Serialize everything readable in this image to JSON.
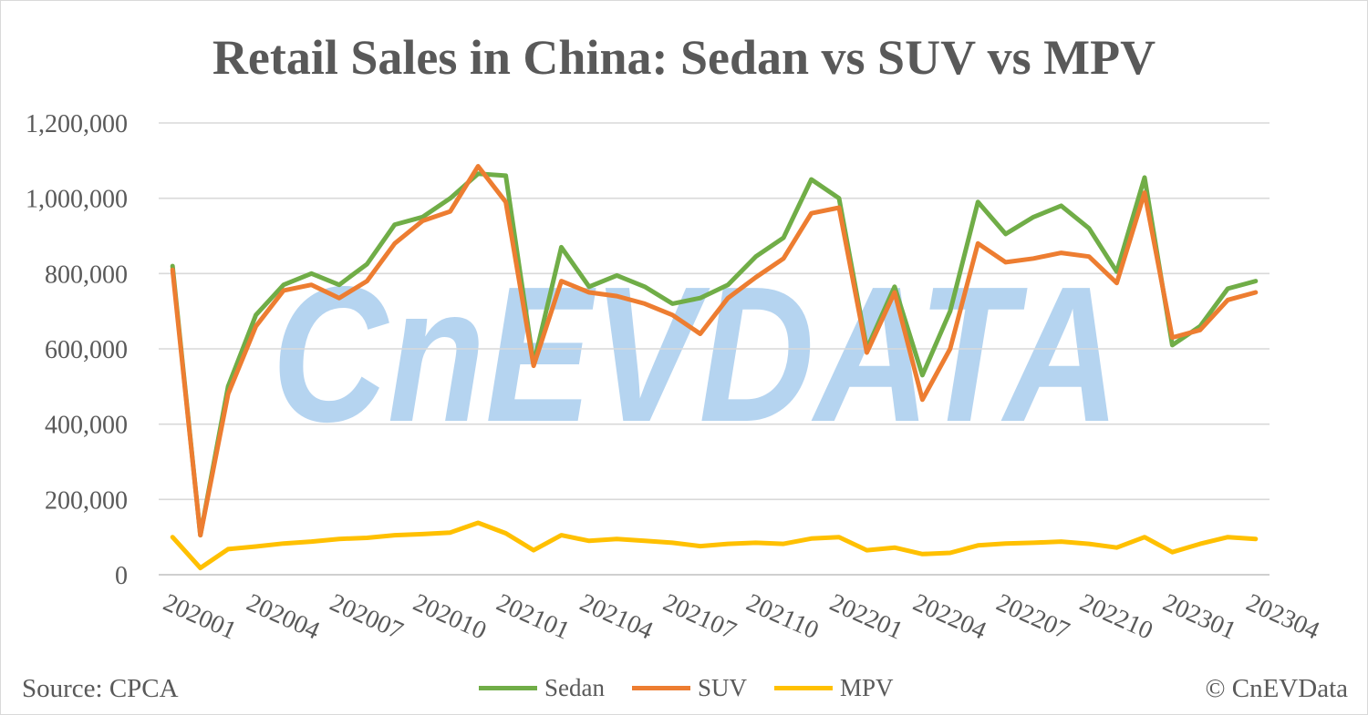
{
  "chart_data": {
    "type": "line",
    "title": "Retail Sales in China: Sedan vs SUV vs MPV",
    "xlabel": "",
    "ylabel": "",
    "ylim": [
      0,
      1200000
    ],
    "yticks": [
      "0",
      "200,000",
      "400,000",
      "600,000",
      "800,000",
      "1,000,000",
      "1,200,000"
    ],
    "x": [
      "202001",
      "202002",
      "202003",
      "202004",
      "202005",
      "202006",
      "202007",
      "202008",
      "202009",
      "202010",
      "202011",
      "202012",
      "202101",
      "202102",
      "202103",
      "202104",
      "202105",
      "202106",
      "202107",
      "202108",
      "202109",
      "202110",
      "202111",
      "202112",
      "202201",
      "202202",
      "202203",
      "202204",
      "202205",
      "202206",
      "202207",
      "202208",
      "202209",
      "202210",
      "202211",
      "202212",
      "202301",
      "202302",
      "202303",
      "202304"
    ],
    "xtick_labels": [
      "202001",
      "202004",
      "202007",
      "202010",
      "202101",
      "202104",
      "202107",
      "202110",
      "202201",
      "202204",
      "202207",
      "202210",
      "202301",
      "202304"
    ],
    "grid": true,
    "legend_position": "bottom",
    "series": [
      {
        "name": "Sedan",
        "color": "#70ad47",
        "values": [
          820000,
          105000,
          500000,
          690000,
          770000,
          800000,
          770000,
          825000,
          930000,
          950000,
          1000000,
          1065000,
          1060000,
          560000,
          870000,
          765000,
          795000,
          765000,
          720000,
          735000,
          770000,
          845000,
          895000,
          1050000,
          1000000,
          600000,
          765000,
          530000,
          700000,
          990000,
          905000,
          950000,
          980000,
          920000,
          805000,
          1055000,
          610000,
          660000,
          760000,
          780000
        ]
      },
      {
        "name": "SUV",
        "color": "#ed7d31",
        "values": [
          810000,
          105000,
          480000,
          660000,
          755000,
          770000,
          735000,
          780000,
          880000,
          940000,
          965000,
          1085000,
          990000,
          555000,
          780000,
          750000,
          740000,
          720000,
          690000,
          640000,
          735000,
          790000,
          840000,
          960000,
          975000,
          590000,
          750000,
          465000,
          600000,
          880000,
          830000,
          840000,
          855000,
          845000,
          775000,
          1015000,
          630000,
          650000,
          730000,
          750000
        ]
      },
      {
        "name": "MPV",
        "color": "#ffc000",
        "values": [
          100000,
          18000,
          68000,
          75000,
          83000,
          88000,
          95000,
          98000,
          105000,
          108000,
          112000,
          138000,
          110000,
          65000,
          105000,
          90000,
          95000,
          90000,
          85000,
          76000,
          82000,
          85000,
          82000,
          96000,
          100000,
          65000,
          72000,
          55000,
          58000,
          78000,
          83000,
          85000,
          88000,
          82000,
          72000,
          100000,
          60000,
          82000,
          100000,
          95000
        ]
      }
    ]
  },
  "watermark": "CnEVDATA",
  "footer": {
    "source": "Source: CPCA",
    "credit": "© CnEVData"
  }
}
